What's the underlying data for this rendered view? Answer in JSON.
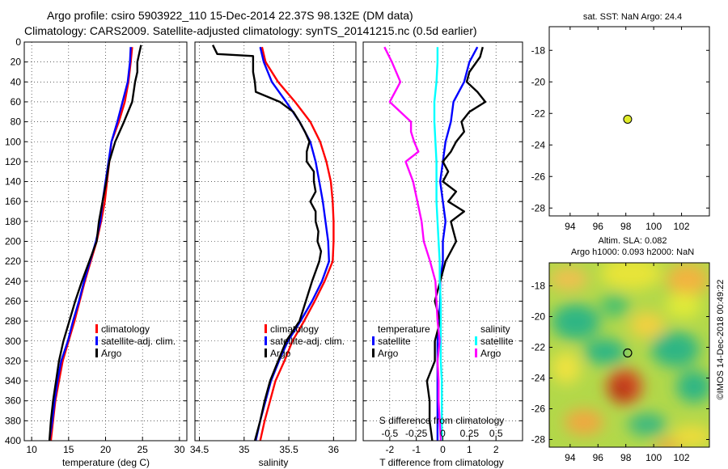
{
  "figure": {
    "title_line1": "Argo profile: csiro 5903922_110 15-Dec-2014 22.37S 98.132E (DM data)",
    "title_line2": "Climatology: CARS2009. Satellite-adjusted climatology: synTS_20141215.nc (0.5d earlier)",
    "watermark": "©IMOS 14-Dec-2018 00:49:22"
  },
  "colors": {
    "climatology": "#ff0000",
    "satellite": "#0000ff",
    "argo": "#000000",
    "sat_salinity": "#00ffff",
    "argo_salinity": "#ff00ff",
    "float_marker": "#e0ec2a"
  },
  "chart_data": [
    {
      "id": "temperature",
      "type": "line",
      "xlabel": "temperature (deg C)",
      "xlim": [
        9,
        31
      ],
      "xticks": [
        10,
        15,
        20,
        25,
        30
      ],
      "xtick_labels": [
        "10",
        "15",
        "20",
        "25",
        "30"
      ],
      "ylim": [
        0,
        400
      ],
      "yticks": [
        0,
        20,
        40,
        60,
        80,
        100,
        120,
        140,
        160,
        180,
        200,
        220,
        240,
        260,
        280,
        300,
        320,
        340,
        360,
        380,
        400
      ],
      "grid": true,
      "legend": [
        "climatology",
        "satellite-adj. clim.",
        "Argo"
      ],
      "series": [
        {
          "name": "climatology",
          "color": "#ff0000",
          "depth": [
            5,
            20,
            40,
            60,
            80,
            100,
            120,
            140,
            160,
            180,
            200,
            220,
            240,
            260,
            280,
            300,
            320,
            340,
            360,
            380,
            400
          ],
          "values": [
            23.6,
            23.4,
            23.1,
            22.6,
            21.8,
            20.8,
            20.5,
            20.2,
            19.9,
            19.4,
            18.8,
            18.0,
            17.2,
            16.5,
            15.8,
            15.0,
            14.2,
            13.7,
            13.2,
            12.9,
            12.6
          ]
        },
        {
          "name": "satellite-adj. clim.",
          "color": "#0000ff",
          "depth": [
            5,
            20,
            40,
            60,
            80,
            100,
            120,
            140,
            160,
            180,
            200,
            220,
            240,
            260,
            280,
            300,
            320,
            340,
            360,
            380,
            400
          ],
          "values": [
            23.4,
            23.3,
            23.0,
            22.3,
            21.6,
            20.8,
            20.4,
            20.0,
            19.6,
            19.3,
            18.7,
            17.9,
            17.1,
            16.4,
            15.6,
            14.9,
            14.0,
            13.5,
            13.1,
            12.8,
            12.4
          ]
        },
        {
          "name": "Argo",
          "color": "#000000",
          "depth": [
            3,
            10,
            20,
            30,
            40,
            60,
            80,
            100,
            120,
            140,
            160,
            180,
            200,
            220,
            240,
            260,
            280,
            300,
            320,
            340,
            360,
            380,
            400
          ],
          "values": [
            24.8,
            24.6,
            24.3,
            24.3,
            24.0,
            23.6,
            22.5,
            21.3,
            20.5,
            20.1,
            19.6,
            19.1,
            18.8,
            17.8,
            16.8,
            15.9,
            15.1,
            14.3,
            13.7,
            13.3,
            12.9,
            12.6,
            12.4
          ]
        }
      ]
    },
    {
      "id": "salinity",
      "type": "line",
      "xlabel": "salinity",
      "xlim": [
        34.45,
        36.25
      ],
      "xticks": [
        34.5,
        35,
        35.5,
        36
      ],
      "xtick_labels": [
        "34.5",
        "35",
        "35.5",
        "36"
      ],
      "ylim": [
        0,
        400
      ],
      "grid": true,
      "legend": [
        "climatology",
        "satellite-adj. clim.",
        "Argo"
      ],
      "series": [
        {
          "name": "climatology",
          "color": "#ff0000",
          "depth": [
            5,
            20,
            40,
            60,
            80,
            100,
            120,
            140,
            160,
            180,
            200,
            220,
            240,
            260,
            280,
            300,
            320,
            340,
            360,
            380,
            400
          ],
          "values": [
            35.2,
            35.24,
            35.38,
            35.57,
            35.74,
            35.85,
            35.92,
            35.97,
            35.99,
            36.0,
            36.0,
            35.99,
            35.9,
            35.79,
            35.67,
            35.54,
            35.45,
            35.35,
            35.29,
            35.23,
            35.18
          ]
        },
        {
          "name": "satellite-adj. clim.",
          "color": "#0000ff",
          "depth": [
            5,
            20,
            40,
            60,
            80,
            100,
            120,
            140,
            160,
            180,
            200,
            220,
            240,
            260,
            280,
            300,
            320,
            340,
            360,
            380,
            400
          ],
          "values": [
            35.18,
            35.22,
            35.31,
            35.47,
            35.62,
            35.74,
            35.8,
            35.84,
            35.88,
            35.91,
            35.94,
            35.95,
            35.87,
            35.76,
            35.63,
            35.49,
            35.39,
            35.3,
            35.24,
            35.18,
            35.13
          ]
        },
        {
          "name": "Argo",
          "color": "#000000",
          "depth": [
            3,
            12,
            14,
            30,
            40,
            50,
            60,
            70,
            80,
            90,
            100,
            110,
            120,
            130,
            140,
            150,
            160,
            170,
            180,
            190,
            200,
            210,
            220,
            240,
            260,
            280,
            300,
            320,
            340,
            360,
            380,
            400
          ],
          "values": [
            34.65,
            34.7,
            35.1,
            35.1,
            35.12,
            35.13,
            35.4,
            35.55,
            35.62,
            35.68,
            35.73,
            35.7,
            35.7,
            35.78,
            35.78,
            35.8,
            35.74,
            35.8,
            35.8,
            35.83,
            35.82,
            35.86,
            35.84,
            35.76,
            35.69,
            35.62,
            35.47,
            35.38,
            35.29,
            35.23,
            35.18,
            35.12
          ]
        }
      ]
    },
    {
      "id": "difference",
      "type": "line",
      "xlabel": "T difference from climatology",
      "xlabel_top": "S difference from climatology",
      "xlim": [
        -3,
        3
      ],
      "xticks": [
        -2,
        -1,
        0,
        1,
        2
      ],
      "xtick_labels": [
        "-2",
        "-1",
        "0",
        "1",
        "2"
      ],
      "s_xticks": [
        -0.5,
        -0.25,
        0,
        0.25,
        0.5
      ],
      "s_xtick_labels": [
        "-0.5",
        "-0.25",
        "0",
        "0.25",
        "0.5"
      ],
      "ylim": [
        0,
        400
      ],
      "grid": true,
      "legend_temperature_title": "temperature",
      "legend_salinity_title": "salinity",
      "legend_temperature": [
        "satellite",
        "Argo"
      ],
      "legend_salinity": [
        "satellite",
        "Argo"
      ],
      "series": [
        {
          "name": "T satellite",
          "color": "#0000ff",
          "depth": [
            5,
            20,
            40,
            60,
            80,
            100,
            120,
            140,
            160,
            180,
            200,
            220,
            240,
            260,
            280,
            300,
            320,
            340,
            360,
            380,
            400
          ],
          "values": [
            1.3,
            1.0,
            0.8,
            0.4,
            0.3,
            0.1,
            0.0,
            -0.1,
            0.0,
            0.1,
            0.0,
            0.0,
            -0.1,
            -0.1,
            -0.15,
            -0.2,
            -0.2,
            -0.2,
            -0.2,
            -0.2,
            -0.2
          ]
        },
        {
          "name": "T Argo",
          "color": "#000000",
          "depth": [
            5,
            15,
            30,
            40,
            50,
            60,
            70,
            80,
            90,
            100,
            110,
            120,
            130,
            140,
            150,
            160,
            170,
            180,
            190,
            200,
            210,
            220,
            240,
            260,
            280,
            300,
            320,
            340,
            360,
            380,
            400
          ],
          "values": [
            1.5,
            1.4,
            1.0,
            0.9,
            1.3,
            1.6,
            1.0,
            0.7,
            0.8,
            0.5,
            0.3,
            0.0,
            0.2,
            0.0,
            0.5,
            0.2,
            0.8,
            0.3,
            0.4,
            0.5,
            0.3,
            0.1,
            -0.1,
            -0.3,
            -0.1,
            -0.3,
            -0.3,
            -0.6,
            -0.5,
            -0.5,
            -0.4
          ]
        },
        {
          "name": "S satellite",
          "color": "#00ffff",
          "depth": [
            5,
            20,
            40,
            60,
            80,
            100,
            120,
            140,
            160,
            180,
            200,
            220,
            240,
            260,
            280,
            300,
            320,
            340,
            360,
            380,
            400
          ],
          "values": [
            -0.05,
            -0.05,
            -0.06,
            -0.08,
            -0.08,
            -0.07,
            -0.06,
            -0.06,
            -0.06,
            -0.05,
            -0.04,
            -0.03,
            -0.03,
            -0.02,
            -0.02,
            -0.02,
            -0.02,
            -0.01,
            -0.01,
            -0.01,
            -0.01
          ]
        },
        {
          "name": "S Argo",
          "color": "#ff00ff",
          "depth": [
            5,
            20,
            40,
            60,
            80,
            90,
            100,
            110,
            120,
            140,
            160,
            180,
            200,
            220,
            240,
            260,
            280,
            300,
            320,
            340,
            360,
            380,
            400
          ],
          "values": [
            -0.55,
            -0.48,
            -0.4,
            -0.5,
            -0.3,
            -0.3,
            -0.27,
            -0.23,
            -0.35,
            -0.28,
            -0.24,
            -0.2,
            -0.18,
            -0.12,
            -0.07,
            -0.06,
            -0.05,
            -0.03,
            -0.05,
            -0.04,
            -0.04,
            -0.03,
            -0.02
          ]
        }
      ]
    },
    {
      "id": "sst_map",
      "type": "scatter",
      "title": "sat. SST: NaN Argo: 24.4",
      "xlim": [
        92.5,
        104
      ],
      "ylim": [
        -28.5,
        -16.5
      ],
      "xticks": [
        94,
        96,
        98,
        100,
        102
      ],
      "xtick_labels": [
        "94",
        "96",
        "98",
        "100",
        "102"
      ],
      "yticks": [
        -18,
        -20,
        -22,
        -24,
        -26,
        -28
      ],
      "ytick_labels": [
        "-18",
        "-20",
        "-22",
        "-24",
        "-26",
        "-28"
      ],
      "x": [
        98.13
      ],
      "y": [
        -22.37
      ]
    },
    {
      "id": "sla_map",
      "type": "heatmap",
      "title_line1": "Altim. SLA: 0.082",
      "title_line2": "Argo h1000: 0.093 h2000: NaN",
      "xlim": [
        92.5,
        104
      ],
      "ylim": [
        -28.5,
        -16.5
      ],
      "xticks": [
        94,
        96,
        98,
        100,
        102
      ],
      "xtick_labels": [
        "94",
        "96",
        "98",
        "100",
        "102"
      ],
      "yticks": [
        -18,
        -20,
        -22,
        -24,
        -26,
        -28
      ],
      "ytick_labels": [
        "-18",
        "-20",
        "-22",
        "-24",
        "-26",
        "-28"
      ],
      "float_x": 98.13,
      "float_y": -22.37
    }
  ]
}
